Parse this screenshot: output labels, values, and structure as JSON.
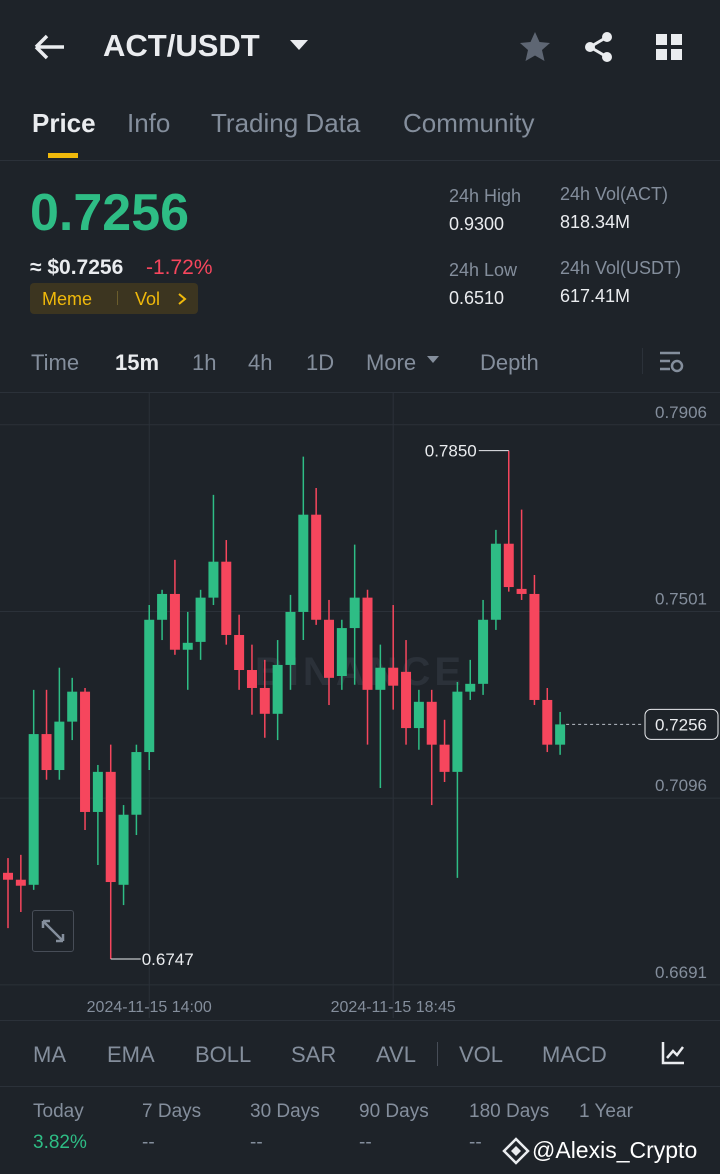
{
  "header": {
    "title": "ACT/USDT"
  },
  "tabs": [
    "Price",
    "Info",
    "Trading Data",
    "Community"
  ],
  "price": {
    "last": "0.7256",
    "usd": "≈ $0.7256",
    "change": "-1.72%",
    "tags": [
      "Meme",
      "Vol"
    ]
  },
  "stats": [
    {
      "label": "24h High",
      "value": "0.9300"
    },
    {
      "label": "24h Low",
      "value": "0.6510"
    },
    {
      "label": "24h Vol(ACT)",
      "value": "818.34M"
    },
    {
      "label": "24h Vol(USDT)",
      "value": "617.41M"
    }
  ],
  "intervals": [
    "Time",
    "15m",
    "1h",
    "4h",
    "1D",
    "More",
    "Depth"
  ],
  "chart_data": {
    "type": "candlestick",
    "watermark": "BINANCE",
    "up_color": "#2ebd85",
    "down_color": "#f6465d",
    "grid": true,
    "ylim": [
      0.6619,
      0.7975
    ],
    "yticks": [
      0.7906,
      0.7501,
      0.7096,
      0.6691
    ],
    "categories": [
      null,
      null,
      null,
      null,
      null,
      null,
      null,
      null,
      null,
      null,
      null,
      "2024-11-15 14:00",
      null,
      null,
      null,
      null,
      null,
      null,
      null,
      null,
      null,
      null,
      null,
      null,
      null,
      null,
      null,
      null,
      null,
      null,
      "2024-11-15 18:45",
      null,
      null,
      null,
      null,
      null,
      null,
      null,
      null,
      null,
      null,
      null,
      null,
      null
    ],
    "open": [
      0.6934,
      0.6919,
      0.6908,
      0.7235,
      0.7157,
      0.7262,
      0.7327,
      0.7066,
      0.7153,
      0.6908,
      0.706,
      0.7196,
      0.7483,
      0.7539,
      0.7418,
      0.7435,
      0.7531,
      0.7609,
      0.745,
      0.7374,
      0.7335,
      0.7279,
      0.7385,
      0.75,
      0.7711,
      0.7483,
      0.7361,
      0.7465,
      0.7531,
      0.7331,
      0.7379,
      0.737,
      0.7248,
      0.7305,
      0.7212,
      0.7153,
      0.7327,
      0.7344,
      0.7483,
      0.7648,
      0.755,
      0.7539,
      0.7309,
      0.7212
    ],
    "high": [
      0.6966,
      0.6973,
      0.7331,
      0.7331,
      0.7379,
      0.7357,
      0.7335,
      0.7168,
      0.7212,
      0.7081,
      0.7212,
      0.7515,
      0.7548,
      0.7613,
      0.75,
      0.7548,
      0.7754,
      0.7656,
      0.7494,
      0.7429,
      0.7396,
      0.7439,
      0.7537,
      0.7837,
      0.7769,
      0.7526,
      0.7483,
      0.7646,
      0.7548,
      0.7429,
      0.7515,
      0.7439,
      0.7331,
      0.7331,
      0.7266,
      0.7348,
      0.7396,
      0.7526,
      0.7678,
      0.785,
      0.7722,
      0.758,
      0.7335,
      0.7283
    ],
    "low": [
      0.6814,
      0.6849,
      0.6897,
      0.7136,
      0.7136,
      0.7222,
      0.7027,
      0.6951,
      0.6747,
      0.6864,
      0.7016,
      0.7157,
      0.7439,
      0.7407,
      0.7331,
      0.7396,
      0.7515,
      0.7429,
      0.7331,
      0.7277,
      0.7227,
      0.7222,
      0.7331,
      0.7439,
      0.7472,
      0.7298,
      0.7331,
      0.7342,
      0.7212,
      0.7118,
      0.7288,
      0.7212,
      0.7201,
      0.7081,
      0.7131,
      0.6923,
      0.7309,
      0.732,
      0.7461,
      0.7544,
      0.7526,
      0.7298,
      0.7196,
      0.719
    ],
    "close": [
      0.6919,
      0.6906,
      0.7235,
      0.7157,
      0.7262,
      0.7327,
      0.7066,
      0.7153,
      0.6914,
      0.706,
      0.7196,
      0.7483,
      0.7539,
      0.7418,
      0.7433,
      0.7531,
      0.7609,
      0.745,
      0.7374,
      0.7335,
      0.7279,
      0.7385,
      0.75,
      0.7711,
      0.7483,
      0.7357,
      0.7465,
      0.7531,
      0.7331,
      0.7379,
      0.734,
      0.7248,
      0.7305,
      0.7212,
      0.7153,
      0.7327,
      0.7344,
      0.7483,
      0.7648,
      0.7554,
      0.7539,
      0.7309,
      0.7212,
      0.7256
    ],
    "high_label": {
      "value": 0.785,
      "label": "0.7850"
    },
    "low_label": {
      "value": 0.6747,
      "label": "0.6747"
    },
    "last_price": {
      "value": 0.7256,
      "label": "0.7256"
    }
  },
  "indicators": [
    "MA",
    "EMA",
    "BOLL",
    "SAR",
    "AVL",
    "VOL",
    "MACD"
  ],
  "performance": [
    {
      "label": "Today",
      "value": "3.82%"
    },
    {
      "label": "7 Days",
      "value": "--"
    },
    {
      "label": "30 Days",
      "value": "--"
    },
    {
      "label": "90 Days",
      "value": "--"
    },
    {
      "label": "180 Days",
      "value": "--"
    },
    {
      "label": "1 Year",
      "value": ""
    }
  ],
  "watermark": "@Alexis_Crypto"
}
